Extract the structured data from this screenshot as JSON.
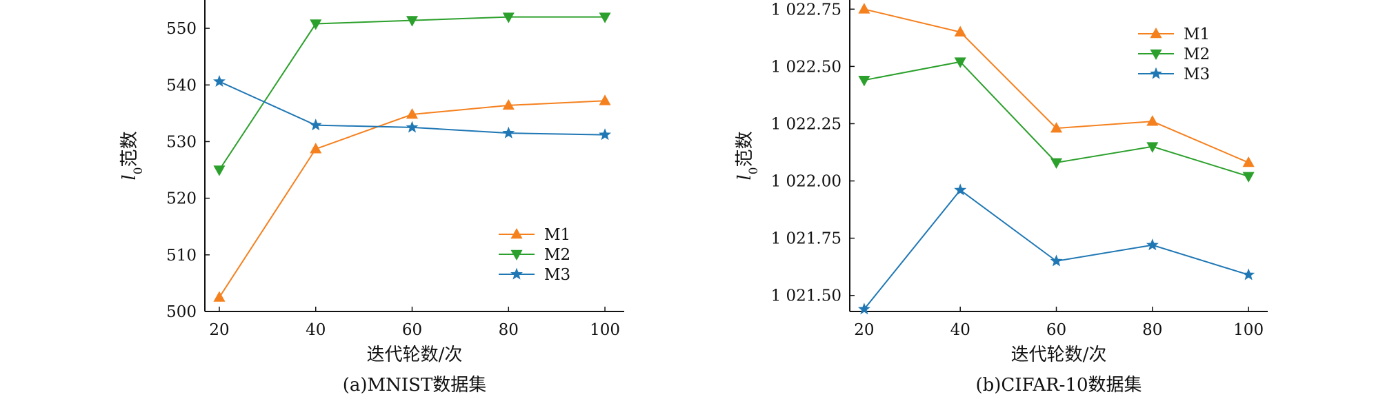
{
  "chart_data": [
    {
      "type": "line",
      "caption": "(a)MNIST数据集",
      "xlabel": "迭代轮数/次",
      "ylabel_main": "l",
      "ylabel_sub": "0",
      "ylabel_rest": "范数",
      "x": [
        20,
        40,
        60,
        80,
        100
      ],
      "xlim": [
        17,
        104
      ],
      "ylim": [
        500,
        555
      ],
      "xticks": [
        20,
        40,
        60,
        80,
        100
      ],
      "xtick_labels": [
        "20",
        "40",
        "60",
        "80",
        "100"
      ],
      "yticks": [
        500,
        510,
        520,
        530,
        540,
        550
      ],
      "ytick_labels": [
        "500",
        "510",
        "520",
        "530",
        "540",
        "550"
      ],
      "legend_position": "lower-right",
      "series": [
        {
          "name": "M1",
          "color": "#f5801e",
          "marker": "triangle-up",
          "values": [
            502.5,
            528.7,
            534.8,
            536.4,
            537.2
          ]
        },
        {
          "name": "M2",
          "color": "#2ca02c",
          "marker": "triangle-down",
          "values": [
            525.0,
            550.8,
            551.4,
            552.0,
            552.0
          ]
        },
        {
          "name": "M3",
          "color": "#1f77b4",
          "marker": "star",
          "values": [
            540.6,
            532.9,
            532.5,
            531.5,
            531.2
          ]
        }
      ]
    },
    {
      "type": "line",
      "caption": "(b)CIFAR-10数据集",
      "xlabel": "迭代轮数/次",
      "ylabel_main": "l",
      "ylabel_sub": "0",
      "ylabel_rest": "范数",
      "x": [
        20,
        40,
        60,
        80,
        100
      ],
      "xlim": [
        17,
        104
      ],
      "ylim": [
        1021.43,
        1022.79
      ],
      "xticks": [
        20,
        40,
        60,
        80,
        100
      ],
      "xtick_labels": [
        "20",
        "40",
        "60",
        "80",
        "100"
      ],
      "yticks": [
        1021.5,
        1021.75,
        1022.0,
        1022.25,
        1022.5,
        1022.75
      ],
      "ytick_labels": [
        "1 021.50",
        "1 021.75",
        "1 022.00",
        "1 022.25",
        "1 022.50",
        "1 022.75"
      ],
      "legend_position": "top-right",
      "series": [
        {
          "name": "M1",
          "color": "#f5801e",
          "marker": "triangle-up",
          "values": [
            1022.75,
            1022.65,
            1022.23,
            1022.26,
            1022.08
          ]
        },
        {
          "name": "M2",
          "color": "#2ca02c",
          "marker": "triangle-down",
          "values": [
            1022.44,
            1022.52,
            1022.08,
            1022.15,
            1022.02
          ]
        },
        {
          "name": "M3",
          "color": "#1f77b4",
          "marker": "star",
          "values": [
            1021.44,
            1021.96,
            1021.65,
            1021.72,
            1021.59
          ]
        }
      ]
    }
  ]
}
